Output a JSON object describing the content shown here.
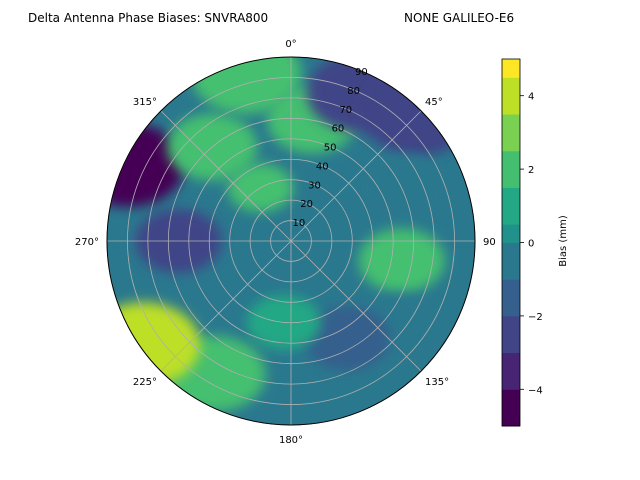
{
  "chart_data": {
    "type": "polar-contourf",
    "title": "Delta Antenna Phase Biases: SNVRA800",
    "subtitle": "NONE GALILEO-E6",
    "theta_direction": "clockwise",
    "theta_zero": "top",
    "theta_tick_labels": [
      "0°",
      "45°",
      "90",
      "135°",
      "180°",
      "225°",
      "270°",
      "315°"
    ],
    "theta_tick_values": [
      0,
      45,
      90,
      135,
      180,
      225,
      270,
      315
    ],
    "radial_tick_labels": [
      "10",
      "20",
      "30",
      "40",
      "50",
      "60",
      "70",
      "80",
      "90"
    ],
    "radial_tick_values": [
      10,
      20,
      30,
      40,
      50,
      60,
      70,
      80,
      90
    ],
    "rlim": [
      0,
      90
    ],
    "grid": true,
    "colorbar": {
      "label": "Bias (mm)",
      "tick_labels": [
        "−4",
        "−2",
        "0",
        "2",
        "4"
      ],
      "tick_values": [
        -4,
        -2,
        0,
        2,
        4
      ],
      "vmin": -5,
      "vmax": 5,
      "levels": [
        -5,
        -4.5,
        -4,
        -3.5,
        -3,
        -2.5,
        -2,
        -1.5,
        -1,
        -0.5,
        0,
        0.5,
        1,
        1.5,
        2,
        2.5,
        3,
        3.5,
        4,
        4.5,
        5
      ],
      "colormap": "viridis",
      "colors": [
        "#440154",
        "#482475",
        "#414487",
        "#355f8d",
        "#2a788e",
        "#21918c",
        "#22a884",
        "#44bf70",
        "#7ad151",
        "#bddf26",
        "#fde725"
      ]
    },
    "regions": [
      {
        "azimuth_deg": 0,
        "zenith_deg": 5,
        "bias_mm": -0.8
      },
      {
        "azimuth_deg": 10,
        "zenith_deg": 60,
        "bias_mm": 2.4
      },
      {
        "azimuth_deg": 25,
        "zenith_deg": 80,
        "bias_mm": -2.5
      },
      {
        "azimuth_deg": 45,
        "zenith_deg": 88,
        "bias_mm": -2.5
      },
      {
        "azimuth_deg": 65,
        "zenith_deg": 60,
        "bias_mm": -0.5
      },
      {
        "azimuth_deg": 100,
        "zenith_deg": 55,
        "bias_mm": 1.8
      },
      {
        "azimuth_deg": 130,
        "zenith_deg": 70,
        "bias_mm": -0.8
      },
      {
        "azimuth_deg": 150,
        "zenith_deg": 55,
        "bias_mm": -1.5
      },
      {
        "azimuth_deg": 185,
        "zenith_deg": 40,
        "bias_mm": 1.2
      },
      {
        "azimuth_deg": 210,
        "zenith_deg": 75,
        "bias_mm": 1.8
      },
      {
        "azimuth_deg": 235,
        "zenith_deg": 88,
        "bias_mm": 4.4
      },
      {
        "azimuth_deg": 270,
        "zenith_deg": 55,
        "bias_mm": -2.7
      },
      {
        "azimuth_deg": 295,
        "zenith_deg": 88,
        "bias_mm": -4.3
      },
      {
        "azimuth_deg": 320,
        "zenith_deg": 60,
        "bias_mm": 1.8
      },
      {
        "azimuth_deg": 330,
        "zenith_deg": 30,
        "bias_mm": 1.5
      },
      {
        "azimuth_deg": 345,
        "zenith_deg": 85,
        "bias_mm": 2.4
      }
    ]
  }
}
